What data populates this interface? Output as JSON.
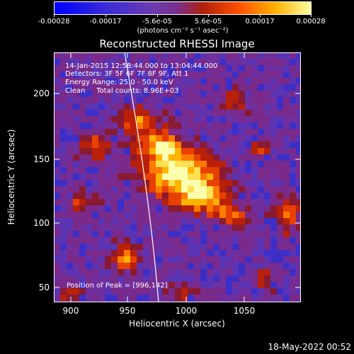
{
  "colorbar": {
    "tick_labels": [
      "-0.00028",
      "-0.00017",
      "-5.6e-05",
      "5.6e-05",
      "0.00017",
      "0.00028"
    ],
    "units": "(photons cm⁻² s⁻¹ asec⁻²)"
  },
  "title": "Reconstructed RHESSI Image",
  "annotations": {
    "time_range": "14-Jan-2015 12:58:44.000 to 13:04:44.000",
    "detectors": "Detectors: 3F 5F 6F 7F 8F 9F, Att 1",
    "energy_range": "Energy Range: 25.0 - 50.0 keV",
    "method_counts": "Clean     Total counts: 8.96E+03",
    "peak": "Position of Peak = [996,142]"
  },
  "axes": {
    "xlabel": "Heliocentric X (arcsec)",
    "ylabel": "Heliocentric Y (arcsec)",
    "x_ticks": [
      "900",
      "950",
      "1000",
      "1050"
    ],
    "y_ticks": [
      "50",
      "100",
      "150",
      "200"
    ]
  },
  "footer": {
    "timestamp": "18-May-2022 00:52"
  }
}
